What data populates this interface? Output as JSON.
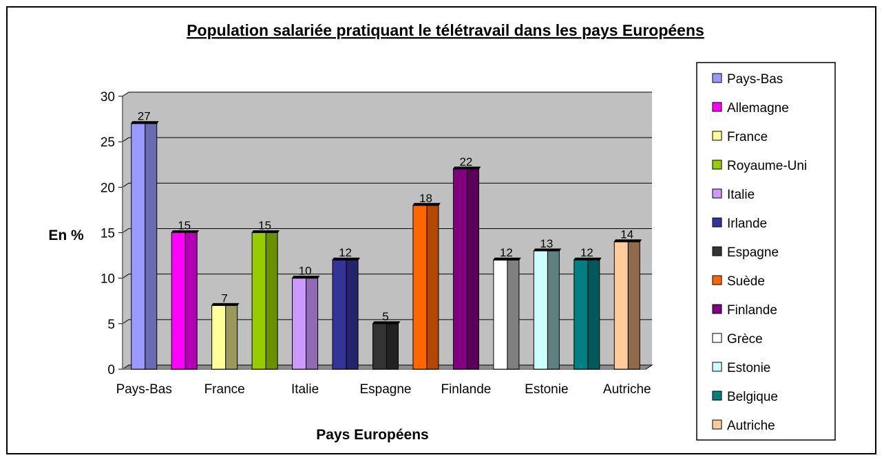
{
  "chart_data": {
    "type": "bar",
    "title": "Population salariée pratiquant le télétravail dans les pays Européens",
    "xlabel": "Pays Européens",
    "ylabel": "En %",
    "ylim": [
      0,
      30
    ],
    "yticks": [
      0,
      5,
      10,
      15,
      20,
      25,
      30
    ],
    "grid": true,
    "legend_position": "right",
    "x_tick_labels": [
      "Pays-Bas",
      "France",
      "Italie",
      "Espagne",
      "Finlande",
      "Estonie",
      "Autriche"
    ],
    "series": [
      {
        "name": "Pays-Bas",
        "value": 27,
        "color": "#9999FF",
        "side": "#6B6BB3"
      },
      {
        "name": "Allemagne",
        "value": 15,
        "color": "#FF00FF",
        "side": "#B300B3"
      },
      {
        "name": "France",
        "value": 7,
        "color": "#FFFF99",
        "side": "#99995C"
      },
      {
        "name": "Royaume-Uni",
        "value": 15,
        "color": "#99CC00",
        "side": "#6B8F00"
      },
      {
        "name": "Italie",
        "value": 10,
        "color": "#CC99FF",
        "side": "#8F6BB3"
      },
      {
        "name": "Irlande",
        "value": 12,
        "color": "#333399",
        "side": "#24246B"
      },
      {
        "name": "Espagne",
        "value": 5,
        "color": "#333333",
        "side": "#222222"
      },
      {
        "name": "Suède",
        "value": 18,
        "color": "#FF6600",
        "side": "#B34700"
      },
      {
        "name": "Finlande",
        "value": 22,
        "color": "#800080",
        "side": "#5A005A"
      },
      {
        "name": "Grèce",
        "value": 12,
        "color": "#FFFFFF",
        "side": "#808080"
      },
      {
        "name": "Estonie",
        "value": 13,
        "color": "#CCFFFF",
        "side": "#5F8080"
      },
      {
        "name": "Belgique",
        "value": 12,
        "color": "#008080",
        "side": "#005A5A"
      },
      {
        "name": "Autriche",
        "value": 14,
        "color": "#FFCC99",
        "side": "#8F6B4A"
      }
    ],
    "plot_background": "#C0C0C0"
  }
}
